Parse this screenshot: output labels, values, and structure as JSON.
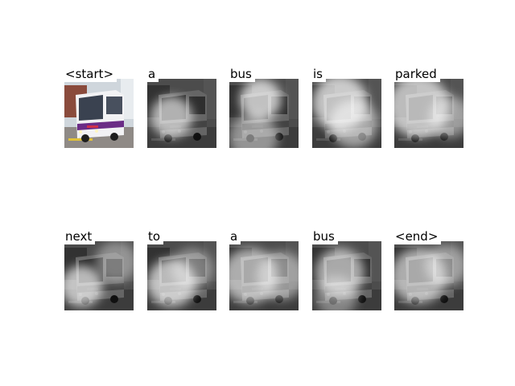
{
  "figure": {
    "caption_words": [
      "<start>",
      "a",
      "bus",
      "is",
      "parked",
      "next",
      "to",
      "a",
      "bus",
      "<end>"
    ],
    "panels": [
      {
        "word": "<start>",
        "kind": "original",
        "attention": []
      },
      {
        "word": "a",
        "kind": "attention",
        "attention": [
          [
            0.35,
            0.55,
            0.3,
            0.85
          ]
        ]
      },
      {
        "word": "bus",
        "kind": "attention",
        "attention": [
          [
            0.45,
            0.3,
            0.3,
            0.95
          ],
          [
            0.35,
            0.85,
            0.35,
            0.6
          ]
        ]
      },
      {
        "word": "is",
        "kind": "attention",
        "attention": [
          [
            0.4,
            0.35,
            0.4,
            0.95
          ],
          [
            0.6,
            0.65,
            0.35,
            0.7
          ]
        ]
      },
      {
        "word": "parked",
        "kind": "attention",
        "attention": [
          [
            0.35,
            0.4,
            0.45,
            0.9
          ],
          [
            0.8,
            0.55,
            0.3,
            0.6
          ]
        ]
      },
      {
        "word": "next",
        "kind": "attention",
        "attention": [
          [
            0.25,
            0.65,
            0.3,
            0.9
          ],
          [
            0.75,
            0.3,
            0.3,
            0.5
          ]
        ]
      },
      {
        "word": "to",
        "kind": "attention",
        "attention": [
          [
            0.35,
            0.6,
            0.35,
            0.9
          ],
          [
            0.65,
            0.4,
            0.3,
            0.5
          ]
        ]
      },
      {
        "word": "a",
        "kind": "attention",
        "attention": [
          [
            0.3,
            0.5,
            0.4,
            0.8
          ],
          [
            0.75,
            0.5,
            0.35,
            0.6
          ]
        ]
      },
      {
        "word": "bus",
        "kind": "attention",
        "attention": [
          [
            0.4,
            0.45,
            0.35,
            0.8
          ],
          [
            0.35,
            0.8,
            0.3,
            0.5
          ]
        ]
      },
      {
        "word": "<end>",
        "kind": "attention",
        "attention": [
          [
            0.35,
            0.5,
            0.4,
            0.8
          ],
          [
            0.75,
            0.35,
            0.3,
            0.6
          ]
        ]
      }
    ]
  }
}
